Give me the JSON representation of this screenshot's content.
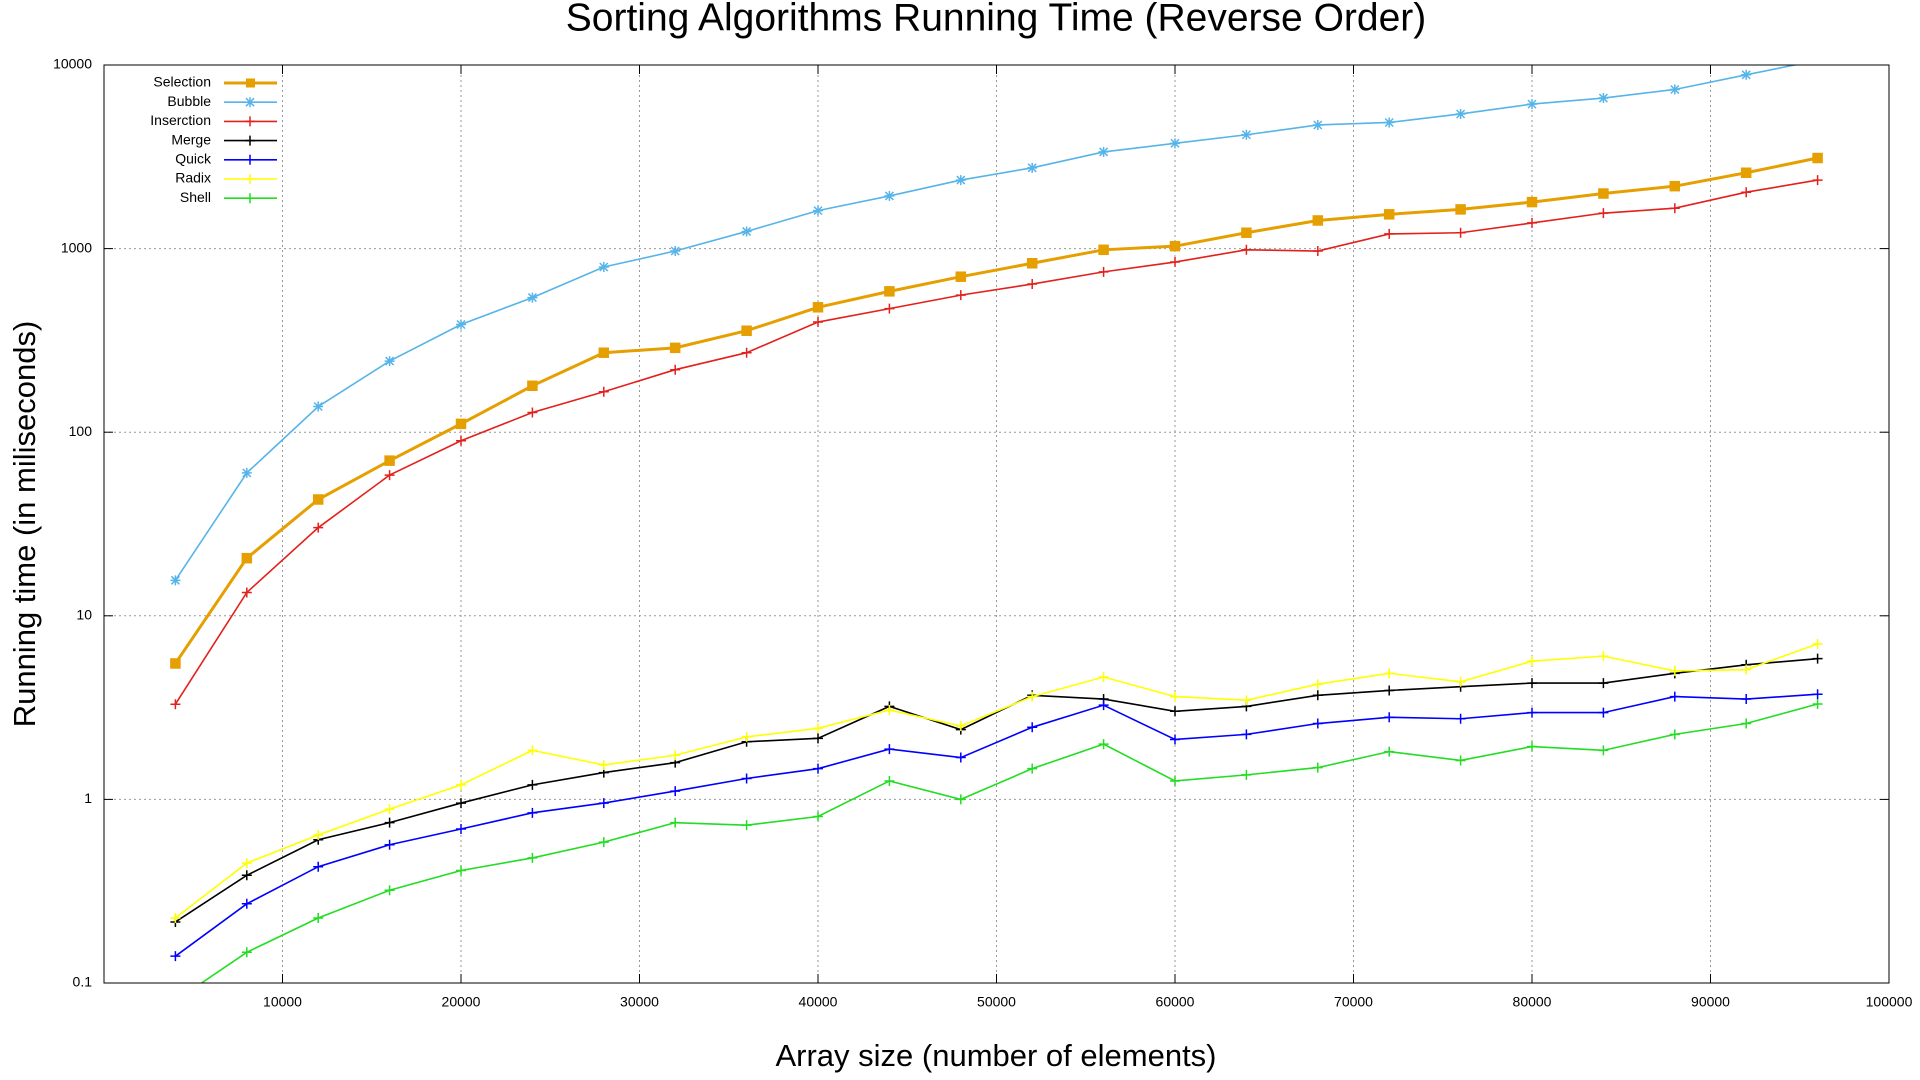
{
  "chart_data": {
    "type": "line",
    "title": "Sorting Algorithms Running Time (Reverse Order)",
    "x_label": "Array size (number of elements)",
    "y_label": "Running time (in miliseconds)",
    "x": [
      4000,
      8000,
      12000,
      16000,
      20000,
      24000,
      28000,
      32000,
      36000,
      40000,
      44000,
      48000,
      52000,
      56000,
      60000,
      64000,
      68000,
      72000,
      76000,
      80000,
      84000,
      88000,
      92000,
      96000
    ],
    "series": [
      {
        "name": "Selection",
        "color": "#e69f00",
        "marker": "square",
        "values": [
          5.5,
          20.6,
          43,
          70,
          111,
          179,
          271,
          288,
          357,
          479,
          585,
          703,
          832,
          985,
          1031,
          1220,
          1423,
          1537,
          1635,
          1792,
          1995,
          2188,
          2589,
          3114
        ]
      },
      {
        "name": "Bubble",
        "color": "#56b4e9",
        "marker": "star",
        "values": [
          15.6,
          60,
          138,
          244,
          386,
          541,
          794,
          970,
          1240,
          1610,
          1936,
          2362,
          2754,
          3362,
          3745,
          4169,
          4713,
          4864,
          5411,
          6124,
          6607,
          7356,
          8845,
          10600
        ]
      },
      {
        "name": "Inserction",
        "color": "#e3201b",
        "marker": "plus",
        "values": [
          3.3,
          13.4,
          30.2,
          58.4,
          89.8,
          128,
          166,
          219,
          271,
          398,
          471,
          558,
          641,
          747,
          845,
          985,
          970,
          1202,
          1220,
          1380,
          1560,
          1660,
          2028,
          2362
        ]
      },
      {
        "name": "Merge",
        "color": "#000000",
        "marker": "plus",
        "values": [
          0.215,
          0.386,
          0.603,
          0.747,
          0.955,
          1.2,
          1.4,
          1.585,
          2.06,
          2.15,
          3.21,
          2.4,
          3.69,
          3.52,
          3.02,
          3.21,
          3.69,
          3.92,
          4.11,
          4.3,
          4.3,
          4.86,
          5.41,
          5.84
        ]
      },
      {
        "name": "Quick",
        "color": "#0000ff",
        "marker": "plus",
        "values": [
          0.14,
          0.27,
          0.43,
          0.566,
          0.69,
          0.845,
          0.955,
          1.11,
          1.3,
          1.47,
          1.88,
          1.69,
          2.47,
          3.26,
          2.12,
          2.26,
          2.59,
          2.8,
          2.75,
          2.97,
          2.97,
          3.63,
          3.52,
          3.74
        ]
      },
      {
        "name": "Radix",
        "color": "#ffff00",
        "marker": "plus",
        "values": [
          0.226,
          0.45,
          0.64,
          0.885,
          1.2,
          1.85,
          1.54,
          1.74,
          2.19,
          2.44,
          3.07,
          2.51,
          3.63,
          4.64,
          3.63,
          3.47,
          4.24,
          4.86,
          4.37,
          5.66,
          6.03,
          5.01,
          5.09,
          7.03
        ]
      },
      {
        "name": "Shell",
        "color": "#22dd22",
        "marker": "plus",
        "values": [
          0.08,
          0.147,
          0.226,
          0.32,
          0.41,
          0.48,
          0.585,
          0.747,
          0.724,
          0.807,
          1.26,
          1.0,
          1.47,
          2.0,
          1.26,
          1.36,
          1.49,
          1.82,
          1.63,
          1.94,
          1.85,
          2.26,
          2.59,
          3.31
        ]
      }
    ],
    "xlim": [
      0,
      100000
    ],
    "xticks": [
      10000,
      20000,
      30000,
      40000,
      50000,
      60000,
      70000,
      80000,
      90000,
      100000
    ],
    "ylim": [
      0.1,
      10000
    ],
    "yticks": [
      0.1,
      1,
      10,
      100,
      1000,
      10000
    ],
    "ylog": true,
    "grid": true,
    "legend": "top-left"
  }
}
